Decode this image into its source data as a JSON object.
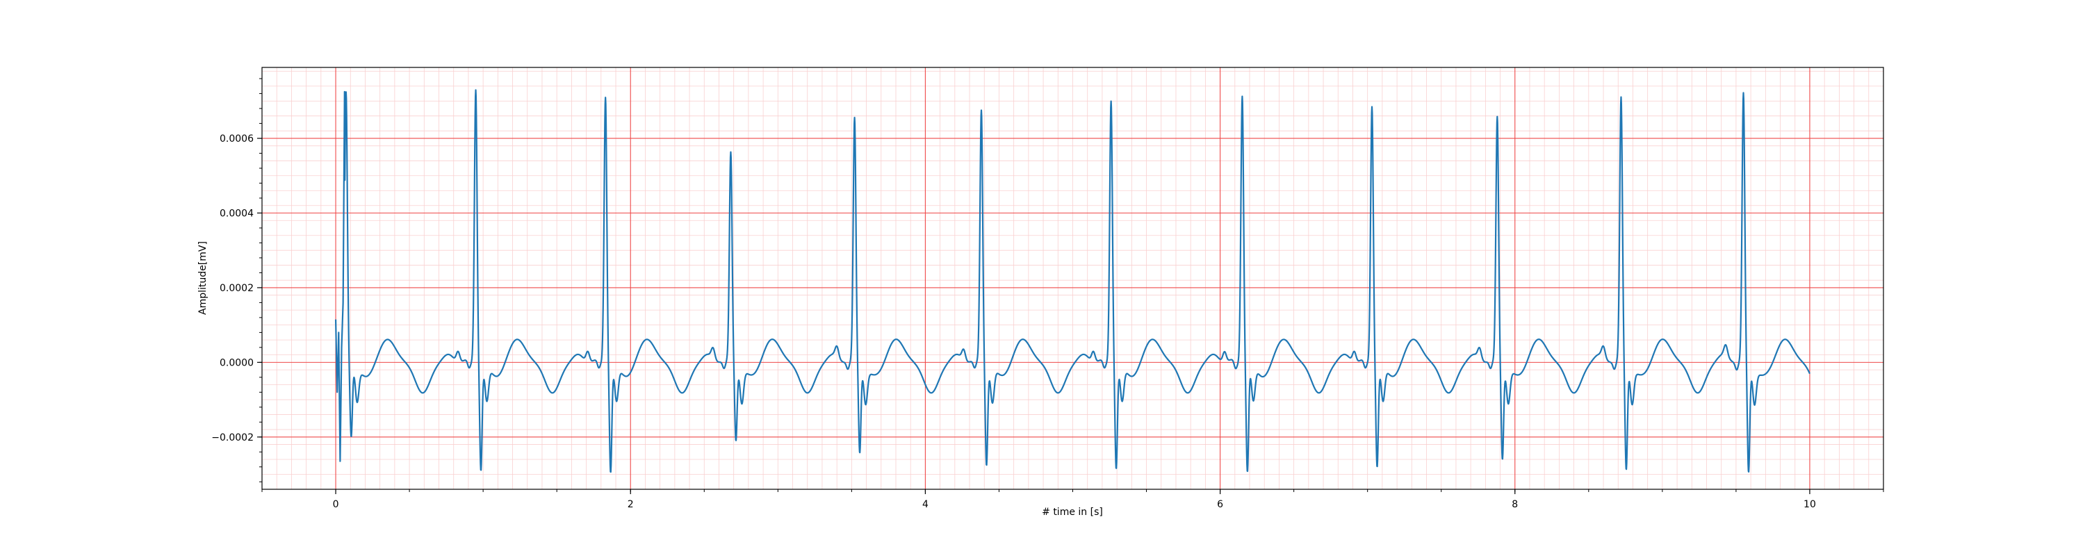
{
  "chart_data": {
    "type": "line",
    "title": "",
    "xlabel": "# time in [s]",
    "ylabel": "Amplitude[mV]",
    "xlim": [
      -0.5,
      10.5
    ],
    "ylim": [
      -0.00034,
      0.00079
    ],
    "xticks": [
      0,
      2,
      4,
      6,
      8,
      10
    ],
    "xtick_labels": [
      "0",
      "2",
      "4",
      "6",
      "8",
      "10"
    ],
    "yticks": [
      -0.0002,
      0.0,
      0.0002,
      0.0004,
      0.0006
    ],
    "ytick_labels": [
      "−0.0002",
      "0.0000",
      "0.0002",
      "0.0004",
      "0.0006"
    ],
    "grid": {
      "major": true,
      "minor": true
    },
    "colors": {
      "line": "#1f77b4",
      "major_grid": "#ef4a4a",
      "minor_grid": "#f9d0d0"
    },
    "series": [
      {
        "name": "",
        "sample_rate_hz": 100,
        "duration_s": 10,
        "start_transient": [
          {
            "t": 0.0,
            "v": 0.000115
          },
          {
            "t": 0.01,
            "v": -8e-05
          },
          {
            "t": 0.02,
            "v": 8e-05
          },
          {
            "t": 0.03,
            "v": -0.000265
          },
          {
            "t": 0.04,
            "v": 4e-05
          },
          {
            "t": 0.05,
            "v": 0.00016
          },
          {
            "t": 0.06,
            "v": 0.000725
          }
        ],
        "beats": [
          {
            "t": 0.07,
            "r": 0.000725,
            "s": -0.000195
          },
          {
            "t": 0.95,
            "r": 0.000735,
            "s": -0.00028
          },
          {
            "t": 1.83,
            "r": 0.000715,
            "s": -0.000285
          },
          {
            "t": 2.68,
            "r": 0.00056,
            "s": -0.0002
          },
          {
            "t": 3.52,
            "r": 0.00065,
            "s": -0.000235
          },
          {
            "t": 4.38,
            "r": 0.000675,
            "s": -0.000265
          },
          {
            "t": 5.26,
            "r": 0.000705,
            "s": -0.000275
          },
          {
            "t": 6.15,
            "r": 0.00072,
            "s": -0.000285
          },
          {
            "t": 7.03,
            "r": 0.00069,
            "s": -0.00027
          },
          {
            "t": 7.88,
            "r": 0.000655,
            "s": -0.00025
          },
          {
            "t": 8.72,
            "r": 0.000705,
            "s": -0.00028
          },
          {
            "t": 9.55,
            "r": 0.000715,
            "s": -0.00029
          }
        ],
        "t_wave": {
          "offset_s": 0.28,
          "amplitude": 6.2e-05
        },
        "post_r_trough": {
          "offset_s": 0.52,
          "amplitude": -8.2e-05
        },
        "u_wave": {
          "offset_s": 0.7,
          "amplitude": 2e-05
        }
      }
    ]
  }
}
